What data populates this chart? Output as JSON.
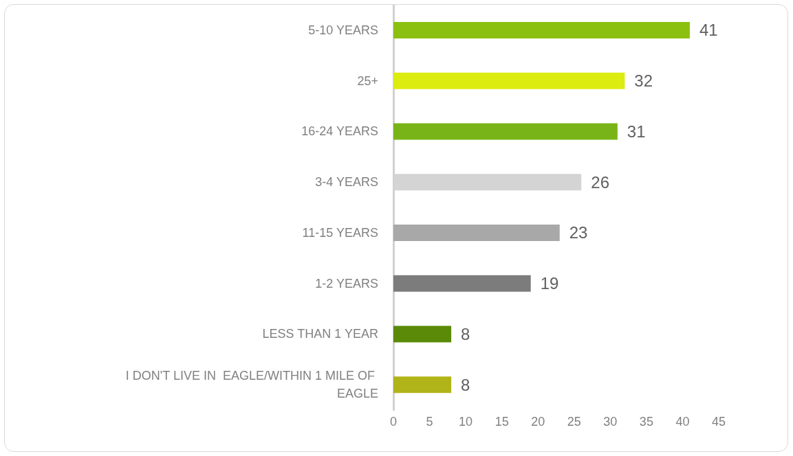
{
  "chart_data": {
    "type": "bar",
    "orientation": "horizontal",
    "categories": [
      "5-10 YEARS",
      "25+",
      "16-24 YEARS",
      "3-4 YEARS",
      "11-15 YEARS",
      "1-2 YEARS",
      "LESS THAN 1 YEAR",
      "I DON'T LIVE IN  EAGLE/WITHIN 1 MILE OF EAGLE"
    ],
    "values": [
      41,
      32,
      31,
      26,
      23,
      19,
      8,
      8
    ],
    "colors": [
      "#8cc010",
      "#dcec10",
      "#78b418",
      "#d4d4d4",
      "#a8a8a8",
      "#7c7c7c",
      "#5a8a08",
      "#b0b418"
    ],
    "xlim": [
      0,
      45
    ],
    "xticks": [
      0,
      5,
      10,
      15,
      20,
      25,
      30,
      35,
      40,
      45
    ],
    "data_labels": true
  }
}
